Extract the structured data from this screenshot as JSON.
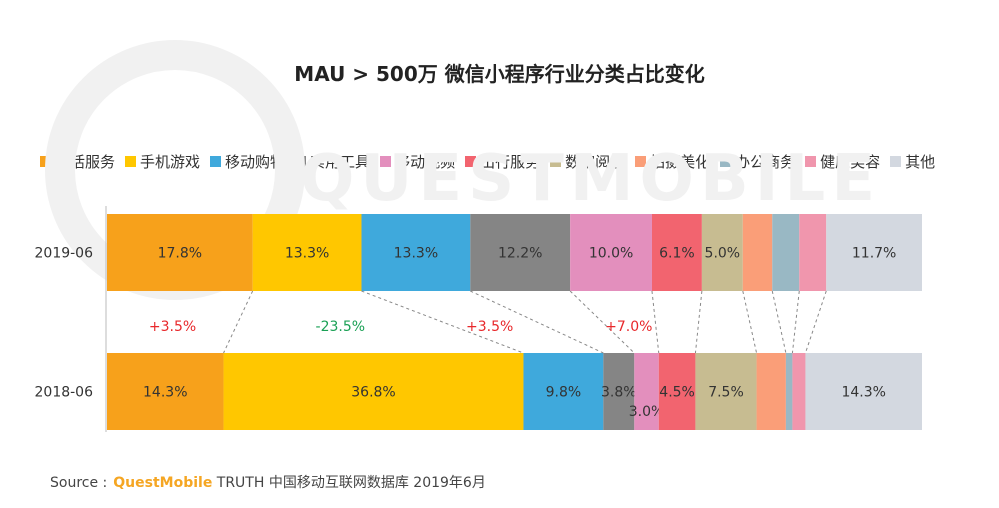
{
  "chart_data": {
    "type": "bar",
    "orientation": "horizontal",
    "stacked": true,
    "normalized": true,
    "title": "MAU > 500万 微信小程序行业分类占比变化",
    "categories": [
      "2019-06",
      "2018-06"
    ],
    "legend_position": "top",
    "grid": false,
    "series": [
      {
        "name": "生活服务",
        "color": "#f7a11b",
        "values": [
          17.8,
          14.3
        ],
        "labels": [
          "17.8%",
          "14.3%"
        ]
      },
      {
        "name": "手机游戏",
        "color": "#ffc700",
        "values": [
          13.3,
          36.8
        ],
        "labels": [
          "13.3%",
          "36.8%"
        ]
      },
      {
        "name": "移动购物",
        "color": "#3fa9dc",
        "values": [
          13.3,
          9.8
        ],
        "labels": [
          "13.3%",
          "9.8%"
        ]
      },
      {
        "name": "实用工具",
        "color": "#858585",
        "values": [
          12.2,
          3.8
        ],
        "labels": [
          "12.2%",
          "3.8%"
        ]
      },
      {
        "name": "移动视频",
        "color": "#e38fbd",
        "values": [
          10.0,
          3.0
        ],
        "labels": [
          "10.0%",
          "3.0%"
        ]
      },
      {
        "name": "出行服务",
        "color": "#f2646f",
        "values": [
          6.1,
          4.5
        ],
        "labels": [
          "6.1%",
          "4.5%"
        ]
      },
      {
        "name": "数字阅读",
        "color": "#c7bc91",
        "values": [
          5.0,
          7.5
        ],
        "labels": [
          "5.0%",
          "7.5%"
        ]
      },
      {
        "name": "拍摄美化",
        "color": "#fa9e78",
        "values": [
          3.6,
          3.6
        ],
        "labels": [
          "",
          ""
        ]
      },
      {
        "name": "办公商务",
        "color": "#99b8c4",
        "values": [
          3.3,
          0.8
        ],
        "labels": [
          "",
          ""
        ]
      },
      {
        "name": "健康美容",
        "color": "#f096ad",
        "values": [
          3.3,
          1.6
        ],
        "labels": [
          "",
          ""
        ]
      },
      {
        "name": "其他",
        "color": "#d3d8e0",
        "values": [
          11.7,
          14.3
        ],
        "labels": [
          "11.7%",
          "14.3%"
        ]
      }
    ],
    "annotations": [
      {
        "text": "+3.5%",
        "series": "生活服务",
        "color": "#e8282b"
      },
      {
        "text": "-23.5%",
        "series": "手机游戏",
        "color": "#1aa055"
      },
      {
        "text": "+3.5%",
        "series": "移动购物",
        "color": "#e8282b"
      },
      {
        "text": "+7.0%",
        "series": "移动视频",
        "color": "#e8282b"
      }
    ]
  },
  "source": {
    "label": "Source :",
    "brand": "QuestMobile",
    "text": "TRUTH 中国移动互联网数据库 2019年6月"
  },
  "watermark": "QUESTMOBILE"
}
